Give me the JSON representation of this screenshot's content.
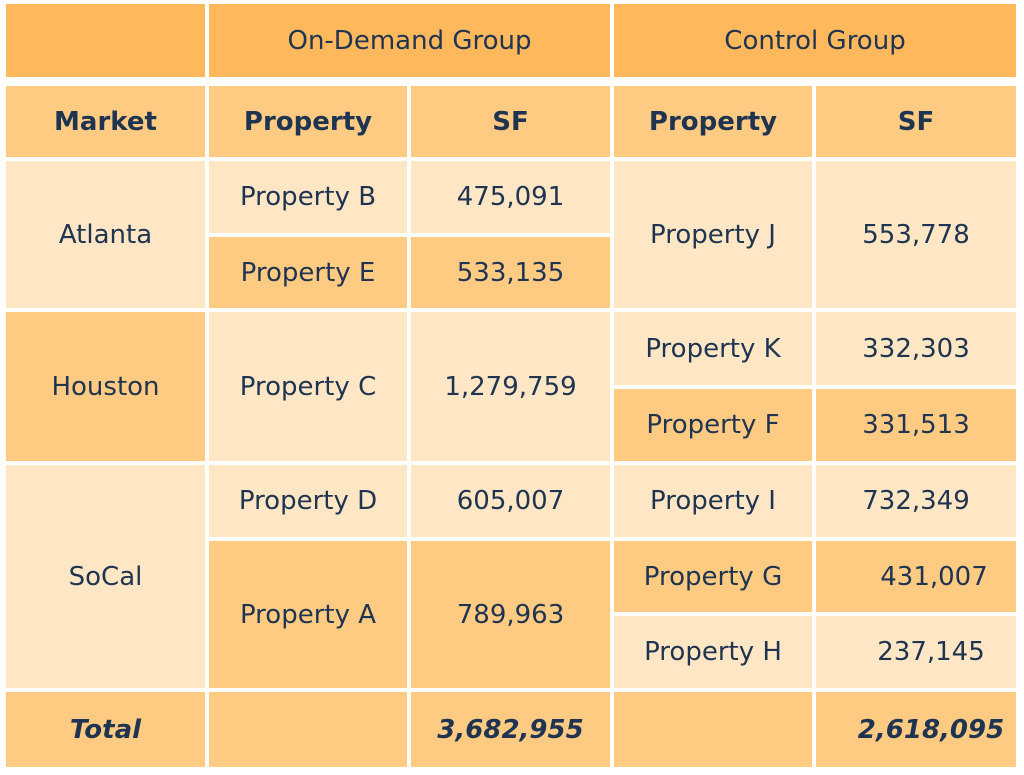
{
  "groups": {
    "on_demand": "On-Demand Group",
    "control": "Control Group"
  },
  "columns": {
    "market": "Market",
    "property": "Property",
    "sf": "SF"
  },
  "markets": {
    "atlanta": "Atlanta",
    "houston": "Houston",
    "socal": "SoCal"
  },
  "on_demand": {
    "b": {
      "property": "Property B",
      "sf": "475,091"
    },
    "e": {
      "property": "Property E",
      "sf": "533,135"
    },
    "c": {
      "property": "Property C",
      "sf": "1,279,759"
    },
    "d": {
      "property": "Property D",
      "sf": "605,007"
    },
    "a": {
      "property": "Property A",
      "sf": "789,963"
    }
  },
  "control": {
    "j": {
      "property": "Property J",
      "sf": "553,778"
    },
    "k": {
      "property": "Property K",
      "sf": "332,303"
    },
    "f": {
      "property": "Property F",
      "sf": "331,513"
    },
    "i": {
      "property": "Property I",
      "sf": "732,349"
    },
    "g": {
      "property": "Property G",
      "sf": "431,007"
    },
    "h": {
      "property": "Property H",
      "sf": "237,145"
    }
  },
  "total": {
    "label": "Total",
    "on_demand_sf": "3,682,955",
    "control_sf": "2,618,095"
  }
}
